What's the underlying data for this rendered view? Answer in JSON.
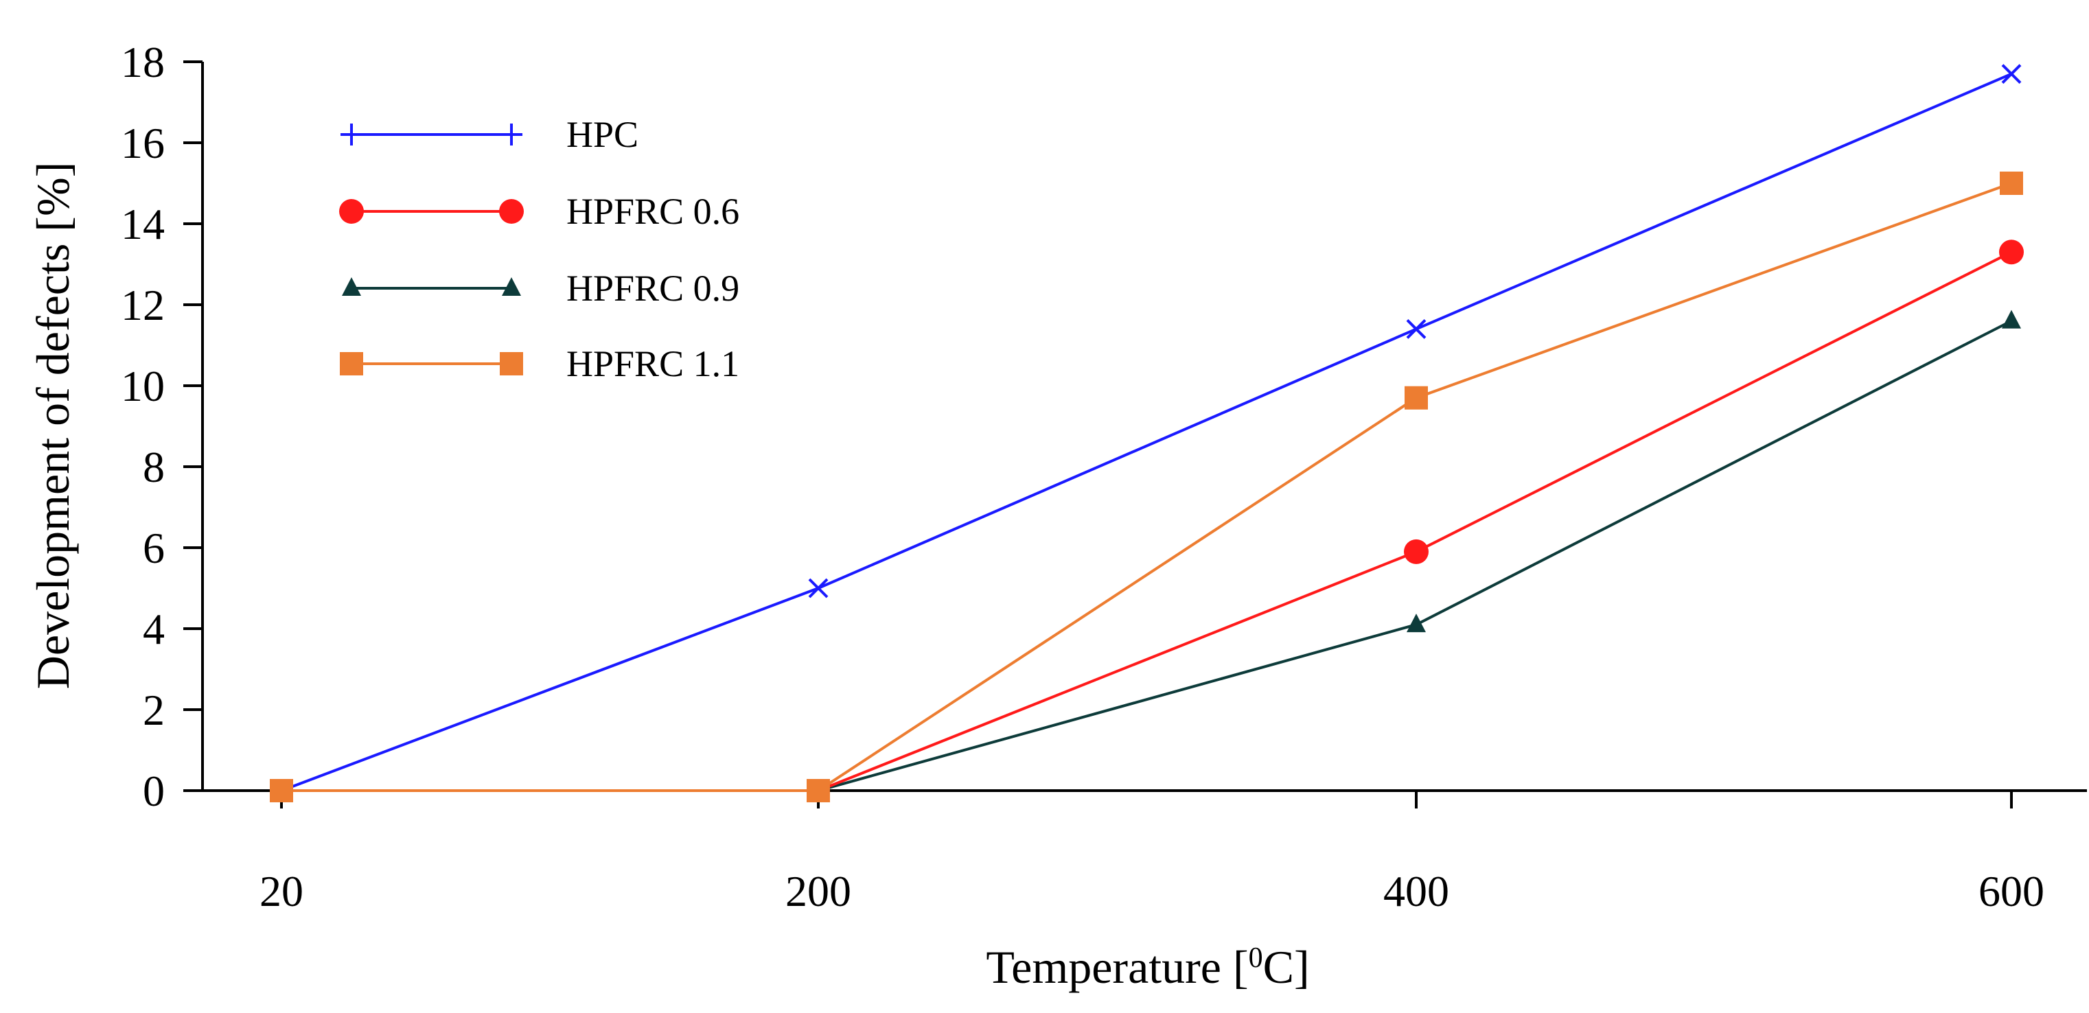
{
  "chart_data": {
    "type": "line",
    "title": "",
    "xlabel_main": "Temperature [",
    "xlabel_sup": "0",
    "xlabel_end": "C]",
    "ylabel": "Development of defects [%]",
    "categories": [
      "20",
      "200",
      "400",
      "600"
    ],
    "yticks": [
      "0",
      "2",
      "4",
      "6",
      "8",
      "10",
      "12",
      "14",
      "16",
      "18"
    ],
    "ylim": [
      0,
      18
    ],
    "grid": false,
    "legend_position": "top-left",
    "series": [
      {
        "name": "HPC",
        "values": [
          0,
          5.0,
          11.4,
          17.7
        ],
        "color": "#1a1aff",
        "marker": "cross"
      },
      {
        "name": "HPFRC 0.6",
        "values": [
          0,
          0,
          5.9,
          13.3
        ],
        "color": "#ff1a1a",
        "marker": "circle"
      },
      {
        "name": "HPFRC 0.9",
        "values": [
          0,
          0,
          4.1,
          11.6
        ],
        "color": "#0d3b3a",
        "marker": "triangle"
      },
      {
        "name": "HPFRC 1.1",
        "values": [
          0,
          0,
          9.7,
          15.0
        ],
        "color": "#ed7d31",
        "marker": "square"
      }
    ]
  }
}
